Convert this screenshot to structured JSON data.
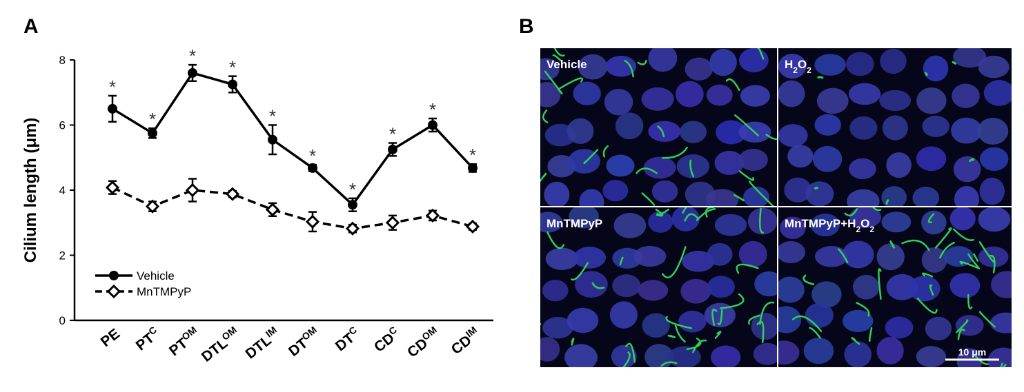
{
  "panel_a": {
    "label": "A",
    "chart_data": {
      "type": "line",
      "ylabel": "Cilium length (μm)",
      "categories": [
        {
          "main": "PE"
        },
        {
          "main": "PT",
          "sup": "C"
        },
        {
          "main": "PT",
          "sup": "OM"
        },
        {
          "main": "DTL",
          "sup": "OM"
        },
        {
          "main": "DTL",
          "sup": "IM"
        },
        {
          "main": "DT",
          "sup": "OM"
        },
        {
          "main": "DT",
          "sup": "C"
        },
        {
          "main": "CD",
          "sup": "C"
        },
        {
          "main": "CD",
          "sup": "OM"
        },
        {
          "main": "CD",
          "sup": "IM"
        }
      ],
      "series": [
        {
          "name": "Vehicle",
          "color": "#000000",
          "marker": "circle",
          "line_style": "solid",
          "values": [
            6.5,
            5.75,
            7.6,
            7.25,
            5.55,
            4.68,
            3.55,
            5.25,
            6.0,
            4.68
          ],
          "errors": [
            0.4,
            0.15,
            0.25,
            0.25,
            0.45,
            0.1,
            0.2,
            0.2,
            0.2,
            0.12
          ],
          "annotations": [
            "*",
            "*",
            "*",
            "*",
            "*",
            "*",
            "*",
            "*",
            "*",
            "*"
          ]
        },
        {
          "name": "MnTMPyP",
          "color": "#000000",
          "marker": "diamond",
          "line_style": "dashed",
          "values": [
            4.08,
            3.5,
            4.0,
            3.88,
            3.4,
            3.03,
            2.82,
            3.0,
            3.22,
            2.88
          ],
          "errors": [
            0.2,
            0.15,
            0.35,
            0.1,
            0.2,
            0.3,
            0.12,
            0.22,
            0.15,
            0.1
          ]
        }
      ],
      "ylim": [
        0,
        8
      ],
      "yticks": [
        0,
        2,
        4,
        6,
        8
      ],
      "grid": false,
      "legend": "lower left"
    }
  },
  "panel_b": {
    "label": "B",
    "images": [
      {
        "label": [
          {
            "t": "Vehicle"
          }
        ]
      },
      {
        "label": [
          {
            "t": "H"
          },
          {
            "t": "2",
            "sub": true
          },
          {
            "t": "O"
          },
          {
            "t": "2",
            "sub": true
          }
        ]
      },
      {
        "label": [
          {
            "t": "MnTMPyP"
          }
        ]
      },
      {
        "label": [
          {
            "t": "MnTMPyP+H"
          },
          {
            "t": "2",
            "sub": true
          },
          {
            "t": "O"
          },
          {
            "t": "2",
            "sub": true
          }
        ]
      }
    ],
    "scale_bar": "10 μm"
  }
}
